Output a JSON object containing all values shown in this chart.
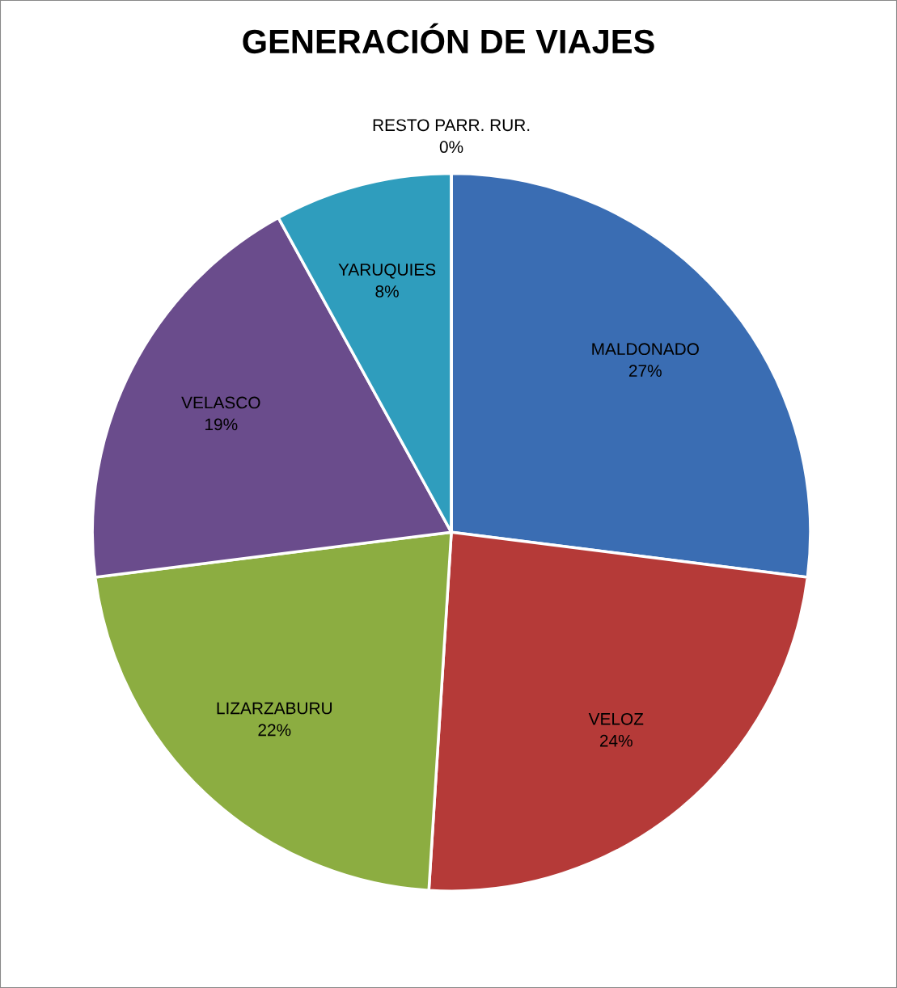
{
  "chart_data": {
    "type": "pie",
    "title": "GENERACIÓN DE VIAJES",
    "categories": [
      "MALDONADO",
      "VELOZ",
      "LIZARZABURU",
      "VELASCO",
      "YARUQUIES",
      "RESTO PARR. RUR."
    ],
    "values": [
      27,
      24,
      22,
      19,
      8,
      0
    ],
    "value_labels": [
      "27%",
      "24%",
      "22%",
      "19%",
      "8%",
      "0%"
    ],
    "colors": [
      "#3a6db3",
      "#b53a38",
      "#8cad41",
      "#6a4c8c",
      "#2f9dbd",
      "#e07b39"
    ],
    "legend": false
  }
}
